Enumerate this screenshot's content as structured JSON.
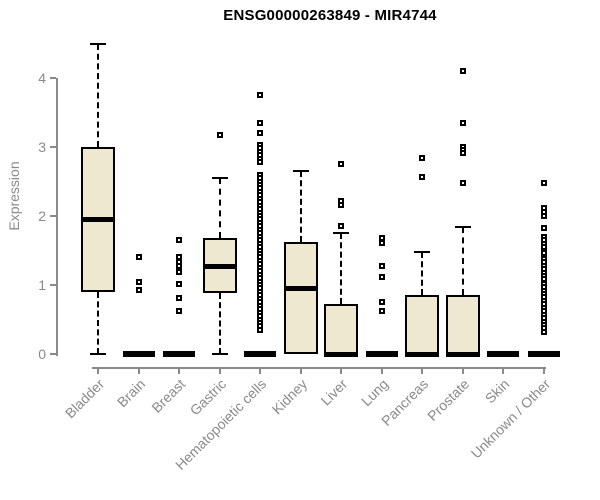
{
  "chart_data": {
    "type": "boxplot",
    "title": "ENSG00000263849 - MIR4744",
    "ylabel": "Expression",
    "xlabel": "",
    "ylim": [
      0,
      4.6
    ],
    "yticks": [
      0,
      1,
      2,
      3,
      4
    ],
    "grid": false,
    "legend": "none",
    "categories": [
      "Bladder",
      "Brain",
      "Breast",
      "Gastric",
      "Hematopoietic cells",
      "Kidney",
      "Liver",
      "Lung",
      "Pancreas",
      "Prostate",
      "Skin",
      "Unknown / Other"
    ],
    "series": [
      {
        "name": "Bladder",
        "whisker_low": 0,
        "q1": 0.9,
        "median": 1.95,
        "q3": 3.0,
        "whisker_high": 4.5,
        "outliers": []
      },
      {
        "name": "Brain",
        "whisker_low": 0,
        "q1": 0,
        "median": 0,
        "q3": 0,
        "whisker_high": 0,
        "outliers": [
          1.4,
          1.05,
          0.93
        ]
      },
      {
        "name": "Breast",
        "whisker_low": 0,
        "q1": 0,
        "median": 0,
        "q3": 0,
        "whisker_high": 0,
        "outliers": [
          1.65,
          1.4,
          1.34,
          1.28,
          1.19,
          1.02,
          0.81,
          0.62
        ]
      },
      {
        "name": "Gastric",
        "whisker_low": 0,
        "q1": 0.88,
        "median": 1.28,
        "q3": 1.68,
        "whisker_high": 2.55,
        "outliers": [
          3.18
        ]
      },
      {
        "name": "Hematopoietic cells",
        "whisker_low": 0,
        "q1": 0,
        "median": 0,
        "q3": 0,
        "whisker_high": 0,
        "outliers": [
          3.75,
          3.35,
          3.2,
          3.03,
          2.98,
          2.93,
          2.88,
          2.83,
          2.78,
          2.6,
          2.55,
          2.5,
          2.45,
          2.4,
          2.35,
          2.3,
          2.25,
          2.2,
          2.15,
          2.1,
          2.05,
          2.0,
          1.95,
          1.9,
          1.85,
          1.8,
          1.75,
          1.7,
          1.65,
          1.6,
          1.55,
          1.5,
          1.45,
          1.4,
          1.35,
          1.3,
          1.25,
          1.2,
          1.15,
          1.1,
          1.05,
          1.0,
          0.95,
          0.9,
          0.85,
          0.8,
          0.75,
          0.7,
          0.65,
          0.6,
          0.55,
          0.5,
          0.45,
          0.4,
          0.35
        ]
      },
      {
        "name": "Kidney",
        "whisker_low": 0,
        "q1": 0,
        "median": 0.95,
        "q3": 1.62,
        "whisker_high": 2.65,
        "outliers": []
      },
      {
        "name": "Liver",
        "whisker_low": 0,
        "q1": 0,
        "median": 0,
        "q3": 0.72,
        "whisker_high": 1.75,
        "outliers": [
          2.75,
          2.22,
          2.16,
          1.86
        ]
      },
      {
        "name": "Lung",
        "whisker_low": 0,
        "q1": 0,
        "median": 0,
        "q3": 0,
        "whisker_high": 0,
        "outliers": [
          1.68,
          1.61,
          1.28,
          1.12,
          0.76,
          0.62
        ]
      },
      {
        "name": "Pancreas",
        "whisker_low": 0,
        "q1": 0,
        "median": 0,
        "q3": 0.85,
        "whisker_high": 1.48,
        "outliers": [
          2.84,
          2.57
        ]
      },
      {
        "name": "Prostate",
        "whisker_low": 0,
        "q1": 0,
        "median": 0,
        "q3": 0.85,
        "whisker_high": 1.84,
        "outliers": [
          4.1,
          3.35,
          3.0,
          2.96,
          2.92,
          2.48
        ]
      },
      {
        "name": "Skin",
        "whisker_low": 0,
        "q1": 0,
        "median": 0,
        "q3": 0,
        "whisker_high": 0,
        "outliers": []
      },
      {
        "name": "Unknown / Other",
        "whisker_low": 0,
        "q1": 0,
        "median": 0,
        "q3": 0,
        "whisker_high": 0,
        "outliers": [
          2.48,
          2.12,
          2.06,
          2.0,
          1.83,
          1.7,
          1.65,
          1.6,
          1.55,
          1.5,
          1.46,
          1.38,
          1.33,
          1.28,
          1.23,
          1.18,
          1.13,
          1.08,
          1.02,
          0.97,
          0.92,
          0.87,
          0.82,
          0.77,
          0.72,
          0.67,
          0.62,
          0.57,
          0.52,
          0.47,
          0.42,
          0.37,
          0.32
        ]
      }
    ],
    "colors": {
      "box_fill": "#ede8cf",
      "box_border": "#000000",
      "axis": "#8a8a8a",
      "tick_label": "#8a8a8a",
      "title": "#000000"
    }
  }
}
